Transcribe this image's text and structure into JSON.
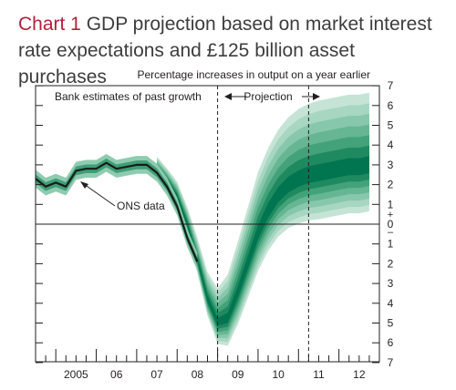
{
  "title": {
    "number": "Chart 1",
    "text": "GDP projection based on market interest rate expectations and £125 billion asset purchases"
  },
  "colors": {
    "title_number": "#b0213a",
    "central_band": "#006b4f",
    "outer_band": "#b9dfcf",
    "line": "#1a1a1a"
  },
  "chart_data": {
    "type": "area",
    "subtitle": "Percentage increases in output on a year earlier",
    "ylim": [
      -7,
      7
    ],
    "right_axis_ticks": [
      "7",
      "6",
      "5",
      "4",
      "3",
      "2",
      "1",
      "0",
      "1",
      "2",
      "3",
      "4",
      "5",
      "6",
      "7"
    ],
    "x_ticks": [
      {
        "label": "2005",
        "x": 2005.5
      },
      {
        "label": "06",
        "x": 2006.5
      },
      {
        "label": "07",
        "x": 2007.5
      },
      {
        "label": "08",
        "x": 2008.5
      },
      {
        "label": "09",
        "x": 2009.5
      },
      {
        "label": "10",
        "x": 2010.5
      },
      {
        "label": "11",
        "x": 2011.5
      },
      {
        "label": "12",
        "x": 2012.5
      }
    ],
    "xlim": [
      2004.5,
      2013.0
    ],
    "annotations": {
      "past_growth": "Bank estimates of past growth",
      "projection": "Projection",
      "ons": "ONS data"
    },
    "dividers": [
      2009.0,
      2011.25
    ],
    "ons_data": {
      "name": "ONS data",
      "x": [
        2004.5,
        2004.75,
        2005.0,
        2005.25,
        2005.5,
        2005.75,
        2006.0,
        2006.25,
        2006.5,
        2006.75,
        2007.0,
        2007.25,
        2007.5,
        2007.75,
        2008.0,
        2008.25,
        2008.5
      ],
      "y": [
        2.3,
        1.9,
        2.1,
        1.9,
        2.7,
        2.8,
        2.8,
        3.1,
        2.8,
        2.9,
        3.0,
        3.0,
        2.6,
        1.9,
        0.9,
        -0.7,
        -1.9
      ]
    },
    "fan": {
      "x": [
        2007.5,
        2007.75,
        2008.0,
        2008.25,
        2008.5,
        2008.75,
        2009.0,
        2009.25,
        2009.5,
        2009.75,
        2010.0,
        2010.25,
        2010.5,
        2010.75,
        2011.0,
        2011.25,
        2011.5,
        2011.75,
        2012.0,
        2012.25,
        2012.5,
        2012.75
      ],
      "central": [
        2.8,
        2.2,
        1.4,
        0.0,
        -1.8,
        -3.8,
        -5.0,
        -4.8,
        -3.5,
        -2.0,
        -0.5,
        0.6,
        1.4,
        1.9,
        2.2,
        2.4,
        2.5,
        2.6,
        2.7,
        2.8,
        2.8,
        2.9
      ],
      "outer_half_width": [
        0.5,
        0.5,
        0.6,
        0.7,
        0.9,
        1.1,
        1.4,
        1.8,
        2.1,
        2.3,
        2.5,
        2.6,
        2.7,
        2.8,
        2.9,
        2.95,
        3.0,
        3.0,
        3.0,
        3.0,
        3.0,
        3.0
      ],
      "skew_up": 0.25
    }
  }
}
